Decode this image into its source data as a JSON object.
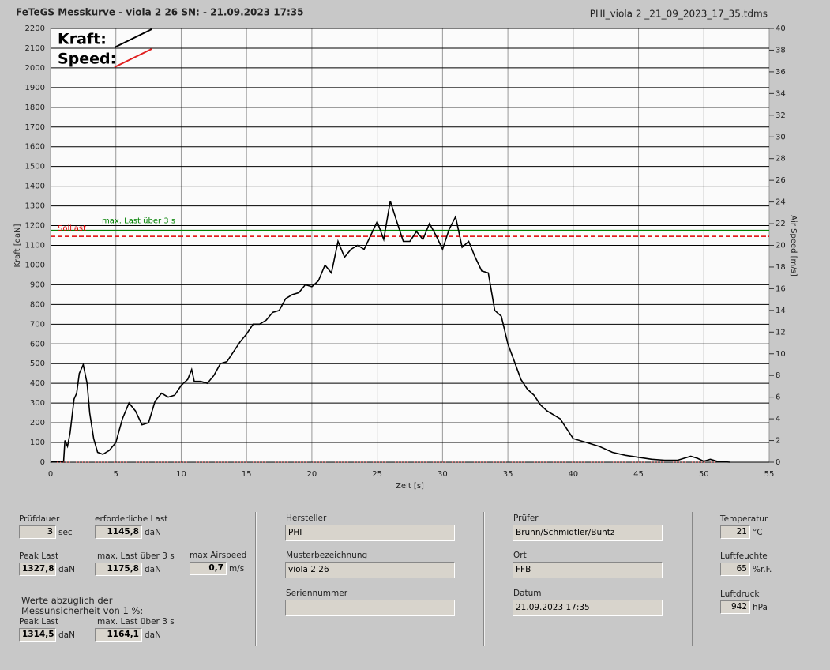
{
  "header": {
    "title": "FeTeGS Messkurve - viola 2 26  SN:  - 21.09.2023 17:35",
    "file": "PHI_viola 2 _21_09_2023_17_35.tdms"
  },
  "chart_data": {
    "type": "line",
    "xlabel": "Zeit [s]",
    "ylabel": "Kraft [daN]",
    "y2label": "Air Speed [m/s]",
    "xlim": [
      0,
      55
    ],
    "xticks": [
      0,
      5,
      10,
      15,
      20,
      25,
      30,
      35,
      40,
      45,
      50,
      55
    ],
    "ylim": [
      0,
      2200
    ],
    "yticks": [
      0,
      100,
      200,
      300,
      400,
      500,
      600,
      700,
      800,
      900,
      1000,
      1100,
      1200,
      1300,
      1400,
      1500,
      1600,
      1700,
      1800,
      1900,
      2000,
      2100,
      2200
    ],
    "y2lim": [
      0,
      40
    ],
    "y2ticks": [
      0,
      2,
      4,
      6,
      8,
      10,
      12,
      14,
      16,
      18,
      20,
      22,
      24,
      26,
      28,
      30,
      32,
      34,
      36,
      38,
      40
    ],
    "grid": true,
    "legend": "top-left",
    "series": [
      {
        "name": "Kraft:",
        "color": "#000000",
        "x": [
          0,
          0.5,
          1,
          1.1,
          1.3,
          1.5,
          1.8,
          2.0,
          2.2,
          2.5,
          2.8,
          3.0,
          3.3,
          3.6,
          4,
          4.5,
          5,
          5.5,
          6,
          6.5,
          7,
          7.5,
          8,
          8.5,
          9,
          9.5,
          10,
          10.5,
          10.8,
          11,
          11.5,
          12,
          12.5,
          13,
          13.5,
          14,
          14.5,
          15,
          15.5,
          16,
          16.5,
          17,
          17.5,
          18,
          18.5,
          19,
          19.5,
          20,
          20.5,
          21,
          21.5,
          22,
          22.5,
          23,
          23.5,
          24,
          24.5,
          25,
          25.5,
          26,
          26.5,
          27,
          27.5,
          28,
          28.5,
          29,
          29.5,
          30,
          30.5,
          31,
          31.5,
          32,
          32.5,
          33,
          33.5,
          34,
          34.5,
          35,
          35.5,
          36,
          36.5,
          37,
          37.5,
          38,
          38.5,
          39,
          39.5,
          40,
          41,
          42,
          43,
          44,
          45,
          46,
          47,
          48,
          49,
          49.5,
          50,
          50.5,
          51,
          52
        ],
        "values": [
          0,
          5,
          0,
          110,
          80,
          150,
          320,
          350,
          450,
          495,
          400,
          250,
          120,
          50,
          40,
          60,
          100,
          220,
          300,
          260,
          190,
          200,
          310,
          350,
          330,
          340,
          390,
          420,
          470,
          410,
          410,
          400,
          440,
          500,
          510,
          560,
          610,
          650,
          700,
          700,
          720,
          760,
          770,
          830,
          850,
          860,
          900,
          890,
          920,
          1000,
          960,
          1120,
          1040,
          1080,
          1100,
          1080,
          1150,
          1220,
          1130,
          1325,
          1220,
          1120,
          1120,
          1170,
          1130,
          1210,
          1150,
          1080,
          1180,
          1245,
          1090,
          1120,
          1040,
          970,
          960,
          770,
          740,
          600,
          510,
          420,
          370,
          340,
          290,
          260,
          240,
          220,
          170,
          120,
          100,
          80,
          50,
          35,
          25,
          15,
          10,
          10,
          30,
          20,
          5,
          15,
          5,
          0
        ]
      },
      {
        "name": "Speed:",
        "color": "#e02020",
        "axis": "y2",
        "x": [
          0,
          51
        ],
        "values": [
          0,
          0
        ]
      }
    ],
    "annotations": [
      {
        "label": "max. Last über  3 s",
        "value": 1175.8,
        "color": "#008000"
      },
      {
        "label": "Solllast",
        "value": 1145.8,
        "color": "#e00000",
        "dashed": true
      }
    ]
  },
  "panel": {
    "fields": [
      {
        "label": "Prüfdauer",
        "value": "3",
        "unit": "sec"
      },
      {
        "label": "erforderliche Last",
        "value": "1145,8",
        "unit": "daN"
      },
      {
        "label": "Peak Last",
        "value": "1327,8",
        "unit": "daN"
      },
      {
        "label": "max. Last über  3 s",
        "value": "1175,8",
        "unit": "daN"
      },
      {
        "label": "max Airspeed",
        "value": "0,7",
        "unit": "m/s"
      },
      {
        "label": "Peak Last",
        "value": "1314,5",
        "unit": "daN"
      },
      {
        "label": "max. Last über  3 s",
        "value": "1164,1",
        "unit": "daN"
      },
      {
        "label": "Hersteller",
        "value": "PHI"
      },
      {
        "label": "Musterbezeichnung",
        "value": "viola 2 26"
      },
      {
        "label": "Seriennummer"
      },
      {
        "label": "Prüfer",
        "value": "Brunn/Schmidtler/Buntz"
      },
      {
        "label": "Ort",
        "value": "FFB"
      },
      {
        "label": "Datum",
        "value": "21.09.2023 17:35"
      },
      {
        "label": "Temperatur",
        "value": "21",
        "unit": "°C"
      },
      {
        "label": "Luftfeuchte",
        "value": "65",
        "unit": "%r.F."
      },
      {
        "label": "Luftdruck",
        "value": "942",
        "unit": "hPa"
      }
    ],
    "note": [
      "Werte abzüglich der",
      "Messunsicherheit von 1  %:"
    ]
  }
}
